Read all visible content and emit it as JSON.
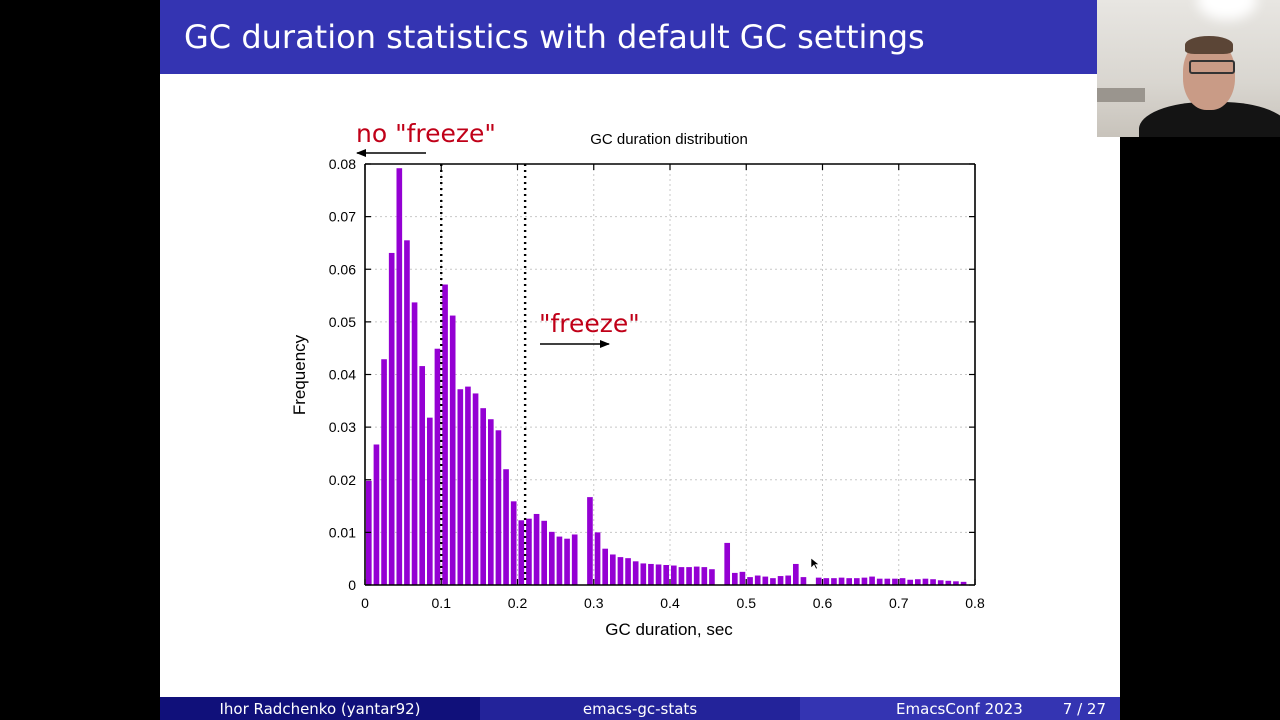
{
  "slide": {
    "title": "GC duration statistics with default GC settings"
  },
  "annotations": {
    "no_freeze": "no \"freeze\"",
    "freeze": "\"freeze\"",
    "color": "#c00018"
  },
  "footer": {
    "author": "Ihor Radchenko (yantar92)",
    "short_title": "emacs-gc-stats",
    "conference": "EmacsConf 2023",
    "page": "7 / 27"
  },
  "colors": {
    "title_bar": "#3434b2",
    "footer_dark": "#10107a",
    "footer_mid": "#23239a",
    "footer_light": "#3434b2",
    "bars": "#9400d3"
  },
  "chart_data": {
    "type": "bar",
    "title": "GC duration distribution",
    "xlabel": "GC duration, sec",
    "ylabel": "Frequency",
    "xlim": [
      0,
      0.8
    ],
    "ylim": [
      0,
      0.08
    ],
    "bin_width": 0.01,
    "x_ticks": [
      "0",
      "0.1",
      "0.2",
      "0.3",
      "0.4",
      "0.5",
      "0.6",
      "0.7",
      "0.8"
    ],
    "y_ticks": [
      "0",
      "0.01",
      "0.02",
      "0.03",
      "0.04",
      "0.05",
      "0.06",
      "0.07",
      "0.08"
    ],
    "grid": true,
    "vlines": [
      0.1,
      0.21
    ],
    "bin_starts": [
      0.0,
      0.01,
      0.02,
      0.03,
      0.04,
      0.05,
      0.06,
      0.07,
      0.08,
      0.09,
      0.1,
      0.11,
      0.12,
      0.13,
      0.14,
      0.15,
      0.16,
      0.17,
      0.18,
      0.19,
      0.2,
      0.21,
      0.22,
      0.23,
      0.24,
      0.25,
      0.26,
      0.27,
      0.29,
      0.3,
      0.31,
      0.32,
      0.33,
      0.34,
      0.35,
      0.36,
      0.37,
      0.38,
      0.39,
      0.4,
      0.41,
      0.42,
      0.43,
      0.44,
      0.45,
      0.47,
      0.48,
      0.49,
      0.5,
      0.51,
      0.52,
      0.53,
      0.54,
      0.55,
      0.56,
      0.57,
      0.59,
      0.6,
      0.61,
      0.62,
      0.63,
      0.64,
      0.65,
      0.66,
      0.67,
      0.68,
      0.69,
      0.7,
      0.71,
      0.72,
      0.73,
      0.74,
      0.75,
      0.76,
      0.77,
      0.78
    ],
    "values": [
      0.0198,
      0.0267,
      0.0429,
      0.0631,
      0.0792,
      0.0655,
      0.0537,
      0.0416,
      0.0318,
      0.0449,
      0.0571,
      0.0512,
      0.0372,
      0.0377,
      0.0364,
      0.0336,
      0.0315,
      0.0294,
      0.022,
      0.0159,
      0.0123,
      0.0126,
      0.0135,
      0.0122,
      0.0101,
      0.0092,
      0.0088,
      0.0096,
      0.0167,
      0.01,
      0.0069,
      0.0058,
      0.0053,
      0.0051,
      0.0045,
      0.0041,
      0.004,
      0.0039,
      0.0038,
      0.0037,
      0.0034,
      0.0034,
      0.0035,
      0.0034,
      0.003,
      0.008,
      0.0023,
      0.0025,
      0.0015,
      0.0018,
      0.0016,
      0.0013,
      0.0017,
      0.0018,
      0.004,
      0.0015,
      0.0014,
      0.0013,
      0.0013,
      0.0014,
      0.0013,
      0.0013,
      0.0014,
      0.0016,
      0.0012,
      0.0012,
      0.0012,
      0.0013,
      0.001,
      0.0011,
      0.0012,
      0.0011,
      0.0009,
      0.0008,
      0.0007,
      0.0006
    ]
  }
}
